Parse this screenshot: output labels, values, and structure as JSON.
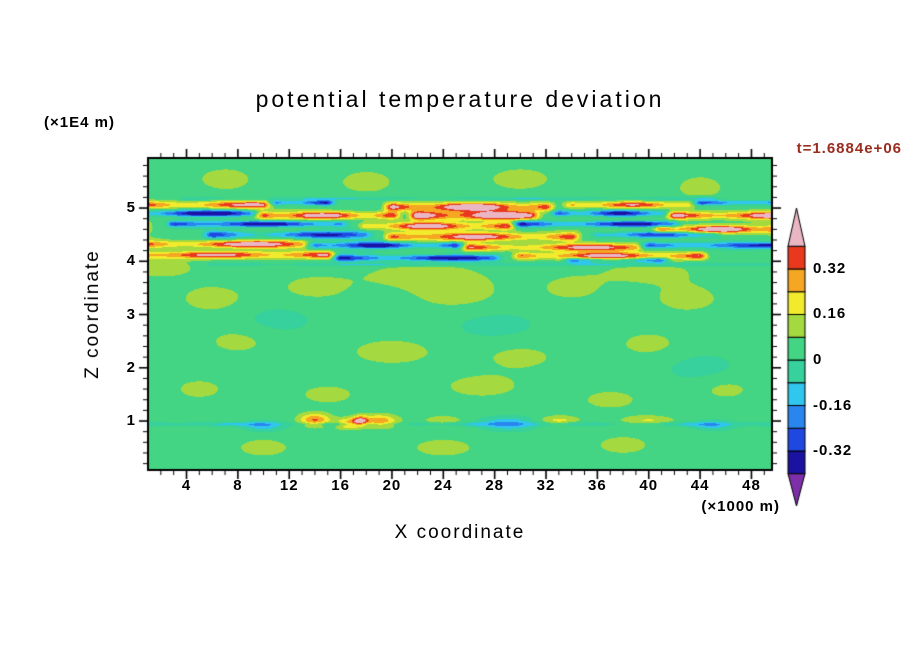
{
  "chart_data": {
    "type": "heatmap",
    "title": "potential temperature deviation",
    "xlabel": "X coordinate",
    "x_unit": "(×1000 m)",
    "ylabel": "Z coordinate",
    "y_unit": "(×1E4 m)",
    "time_label": "t=1.6884e+06",
    "time_color": "#9b2d1f",
    "x_range": [
      1.0,
      49.6
    ],
    "z_range": [
      0.08,
      5.94
    ],
    "x_major_ticks": [
      4,
      8,
      12,
      16,
      20,
      24,
      28,
      32,
      36,
      40,
      44,
      48
    ],
    "x_minor_step": 1,
    "z_major_ticks": [
      1,
      2,
      3,
      4,
      5
    ],
    "z_minor_step": 0.2,
    "contour_levels": [
      -0.4,
      -0.32,
      -0.24,
      -0.16,
      -0.08,
      0,
      0.08,
      0.16,
      0.24,
      0.32,
      0.4
    ],
    "band_colors": [
      "#1a12a0",
      "#1f48e0",
      "#2a86ee",
      "#30c6ee",
      "#36d19c",
      "#43d583",
      "#a4d93f",
      "#f2ea2c",
      "#f5a623",
      "#e8391f"
    ],
    "under_color": "#7d2fa8",
    "over_color": "#eab6c4",
    "colorbar_labels": [
      {
        "text": "0.32",
        "value": 0.32
      },
      {
        "text": "0.16",
        "value": 0.16
      },
      {
        "text": "0",
        "value": 0
      },
      {
        "text": "-0.16",
        "value": -0.16
      },
      {
        "text": "-0.32",
        "value": -0.32
      }
    ],
    "field": {
      "base": 0.03,
      "streak_keys": [
        "zc",
        "sz",
        "amp",
        "x0",
        "x1",
        "k",
        "phase"
      ],
      "streaks": [
        [
          5.06,
          0.07,
          0.4,
          -1,
          11,
          1.2,
          0.0
        ],
        [
          5.1,
          0.05,
          -0.42,
          10,
          16,
          1.0,
          0.8
        ],
        [
          5.02,
          0.08,
          0.52,
          19,
          33,
          1.8,
          0.4
        ],
        [
          5.06,
          0.06,
          0.36,
          33,
          44,
          1.6,
          1.0
        ],
        [
          5.1,
          0.05,
          -0.4,
          43,
          51,
          0.8,
          0.2
        ],
        [
          4.9,
          0.06,
          -0.5,
          -1,
          10,
          1.2,
          1.6
        ],
        [
          4.86,
          0.07,
          0.46,
          9,
          21,
          1.8,
          0.9
        ],
        [
          4.86,
          0.08,
          0.56,
          21,
          32,
          1.4,
          0.1
        ],
        [
          4.9,
          0.06,
          -0.46,
          32,
          42,
          1.6,
          0.5
        ],
        [
          4.86,
          0.07,
          0.5,
          41,
          51,
          1.0,
          0.3
        ],
        [
          4.7,
          0.06,
          -0.5,
          2,
          17,
          1.6,
          0.7
        ],
        [
          4.66,
          0.07,
          0.42,
          17,
          30,
          1.8,
          1.3
        ],
        [
          4.7,
          0.06,
          -0.46,
          29,
          43,
          1.4,
          0.2
        ],
        [
          4.6,
          0.07,
          0.54,
          40,
          50.5,
          1.6,
          1.0
        ],
        [
          4.5,
          0.07,
          -0.4,
          5,
          19,
          1.4,
          0.4
        ],
        [
          4.46,
          0.08,
          0.44,
          19,
          35,
          1.8,
          0.8
        ],
        [
          4.5,
          0.06,
          -0.38,
          35,
          46,
          1.4,
          1.7
        ],
        [
          4.32,
          0.07,
          0.46,
          -1,
          14,
          1.4,
          0.6
        ],
        [
          4.3,
          0.06,
          -0.44,
          13,
          26,
          1.8,
          1.1
        ],
        [
          4.26,
          0.07,
          0.42,
          25,
          40,
          1.4,
          0.1
        ],
        [
          4.3,
          0.06,
          -0.4,
          39,
          51,
          1.0,
          0.7
        ],
        [
          4.12,
          0.07,
          0.44,
          -1,
          16,
          1.8,
          1.4
        ],
        [
          4.06,
          0.06,
          -0.46,
          15,
          29,
          1.4,
          0.3
        ],
        [
          4.1,
          0.07,
          0.46,
          29,
          45,
          1.8,
          0.9
        ],
        [
          4.02,
          0.05,
          -0.36,
          33,
          42,
          1.0,
          0.2
        ],
        [
          4.55,
          0.5,
          0.1,
          -1,
          51,
          4.0,
          0.3
        ],
        [
          4.4,
          0.45,
          -0.07,
          -1,
          51,
          5.0,
          2.0
        ],
        [
          5.18,
          0.035,
          -0.14,
          3,
          46,
          3.0,
          0.5
        ],
        [
          3.94,
          0.035,
          -0.14,
          5,
          51,
          2.5,
          1.2
        ],
        [
          0.94,
          0.04,
          -0.13,
          -1,
          51,
          6.0,
          0.0
        ]
      ],
      "blob_keys": [
        "xc",
        "zc",
        "sx",
        "sz",
        "amp"
      ],
      "blobs": [
        [
          6,
          3.3,
          3,
          0.3,
          0.08
        ],
        [
          14,
          3.5,
          3.5,
          0.3,
          0.07
        ],
        [
          25,
          3.4,
          4,
          0.35,
          0.08
        ],
        [
          34,
          3.5,
          3,
          0.3,
          0.07
        ],
        [
          43,
          3.3,
          3,
          0.3,
          0.08
        ],
        [
          8,
          2.5,
          3,
          0.3,
          0.07
        ],
        [
          20,
          2.3,
          4,
          0.3,
          0.08
        ],
        [
          30,
          2.2,
          3.5,
          0.3,
          0.07
        ],
        [
          40,
          2.45,
          3,
          0.3,
          0.07
        ],
        [
          5,
          1.6,
          2.5,
          0.25,
          0.07
        ],
        [
          15,
          1.5,
          3,
          0.25,
          0.07
        ],
        [
          27,
          1.65,
          3.5,
          0.25,
          0.08
        ],
        [
          37,
          1.4,
          3,
          0.25,
          0.07
        ],
        [
          46,
          1.6,
          2.5,
          0.25,
          0.07
        ],
        [
          10,
          0.5,
          3,
          0.25,
          0.07
        ],
        [
          24,
          0.5,
          3.5,
          0.25,
          0.07
        ],
        [
          38,
          0.55,
          3,
          0.25,
          0.07
        ],
        [
          18,
          5.5,
          3,
          0.3,
          0.07
        ],
        [
          30,
          5.55,
          3.5,
          0.3,
          0.07
        ],
        [
          44,
          5.4,
          2.5,
          0.3,
          0.07
        ],
        [
          7,
          5.55,
          3,
          0.3,
          0.07
        ],
        [
          2,
          3.9,
          4,
          0.25,
          0.08
        ],
        [
          22,
          3.75,
          5,
          0.25,
          0.08
        ],
        [
          40,
          3.8,
          4,
          0.25,
          0.08
        ],
        [
          11,
          2.9,
          3,
          0.3,
          -0.06
        ],
        [
          28,
          2.8,
          3.5,
          0.3,
          -0.06
        ],
        [
          44,
          2.0,
          3,
          0.3,
          -0.06
        ],
        [
          14,
          1.02,
          1.2,
          0.12,
          0.3
        ],
        [
          16.5,
          0.95,
          0.9,
          0.1,
          0.24
        ],
        [
          19,
          1.0,
          1.4,
          0.12,
          0.28
        ],
        [
          17.5,
          1.0,
          0.6,
          0.09,
          0.36
        ],
        [
          29,
          0.95,
          2.0,
          0.12,
          -0.2
        ],
        [
          10,
          0.9,
          1.5,
          0.1,
          -0.16
        ],
        [
          33,
          1.0,
          1.5,
          0.1,
          0.16
        ],
        [
          40,
          1.0,
          2.0,
          0.1,
          0.14
        ],
        [
          45,
          0.92,
          1.5,
          0.09,
          -0.15
        ],
        [
          24,
          1.0,
          1.5,
          0.1,
          0.12
        ]
      ]
    }
  }
}
